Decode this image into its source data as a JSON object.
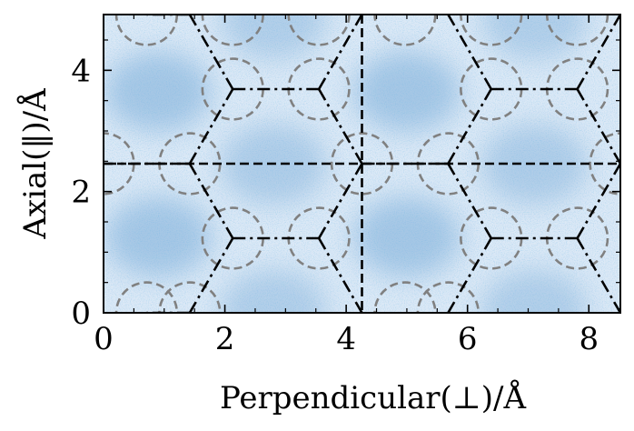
{
  "chart_data": {
    "type": "heatmap",
    "title": "",
    "xlabel": "Perpendicular(⊥)/Å",
    "ylabel": "Axial(‖)/Å",
    "xlim": [
      0,
      8.52
    ],
    "ylim": [
      0,
      4.92
    ],
    "xticks": [
      0,
      2,
      4,
      6,
      8
    ],
    "yticks": [
      0,
      2,
      4
    ],
    "xtick_labels": [
      "0",
      "2",
      "4",
      "6",
      "8"
    ],
    "ytick_labels": [
      "0",
      "2",
      "4"
    ],
    "colormap": "Blues",
    "density_hotspots": [
      {
        "x": 0.9,
        "y": 3.65,
        "level": 0.85
      },
      {
        "x": 0.9,
        "y": 1.25,
        "level": 0.85
      },
      {
        "x": 2.8,
        "y": 2.45,
        "level": 0.7
      },
      {
        "x": 2.8,
        "y": 4.85,
        "level": 0.65
      },
      {
        "x": 2.8,
        "y": 0.05,
        "level": 0.65
      },
      {
        "x": 5.0,
        "y": 3.65,
        "level": 0.85
      },
      {
        "x": 5.0,
        "y": 1.25,
        "level": 0.85
      },
      {
        "x": 7.1,
        "y": 2.45,
        "level": 0.7
      },
      {
        "x": 7.1,
        "y": 4.85,
        "level": 0.65
      },
      {
        "x": 7.1,
        "y": 0.05,
        "level": 0.65
      }
    ],
    "atoms": [
      {
        "x": 0.0,
        "y": 2.46
      },
      {
        "x": 1.42,
        "y": 2.46
      },
      {
        "x": 2.13,
        "y": 3.69
      },
      {
        "x": 3.55,
        "y": 3.69
      },
      {
        "x": 4.26,
        "y": 2.46
      },
      {
        "x": 2.13,
        "y": 1.23
      },
      {
        "x": 3.55,
        "y": 1.23
      },
      {
        "x": 1.42,
        "y": 0.0
      },
      {
        "x": 2.13,
        "y": 4.92
      },
      {
        "x": 3.55,
        "y": 4.92
      },
      {
        "x": 5.68,
        "y": 2.46
      },
      {
        "x": 6.39,
        "y": 3.69
      },
      {
        "x": 7.81,
        "y": 3.69
      },
      {
        "x": 8.52,
        "y": 2.46
      },
      {
        "x": 6.39,
        "y": 1.23
      },
      {
        "x": 7.81,
        "y": 1.23
      },
      {
        "x": 5.68,
        "y": 0.0
      },
      {
        "x": 6.39,
        "y": 4.92
      },
      {
        "x": 7.81,
        "y": 4.92
      },
      {
        "x": 0.71,
        "y": 4.92
      },
      {
        "x": 0.71,
        "y": 0.0
      },
      {
        "x": 4.97,
        "y": 4.92
      },
      {
        "x": 4.97,
        "y": 0.0
      }
    ],
    "bonds": [
      [
        0.0,
        2.46,
        1.42,
        2.46
      ],
      [
        1.42,
        2.46,
        2.13,
        3.69
      ],
      [
        1.42,
        2.46,
        2.13,
        1.23
      ],
      [
        2.13,
        3.69,
        3.55,
        3.69
      ],
      [
        3.55,
        3.69,
        4.26,
        2.46
      ],
      [
        2.13,
        1.23,
        3.55,
        1.23
      ],
      [
        3.55,
        1.23,
        4.26,
        2.46
      ],
      [
        2.13,
        3.69,
        1.42,
        4.92
      ],
      [
        3.55,
        3.69,
        4.26,
        4.92
      ],
      [
        2.13,
        1.23,
        1.42,
        0.0
      ],
      [
        3.55,
        1.23,
        4.26,
        0.0
      ],
      [
        4.26,
        2.46,
        5.68,
        2.46
      ],
      [
        5.68,
        2.46,
        6.39,
        3.69
      ],
      [
        5.68,
        2.46,
        6.39,
        1.23
      ],
      [
        6.39,
        3.69,
        7.81,
        3.69
      ],
      [
        7.81,
        3.69,
        8.52,
        2.46
      ],
      [
        6.39,
        1.23,
        7.81,
        1.23
      ],
      [
        7.81,
        1.23,
        8.52,
        2.46
      ],
      [
        6.39,
        3.69,
        5.68,
        4.92
      ],
      [
        7.81,
        3.69,
        8.52,
        4.92
      ],
      [
        6.39,
        1.23,
        5.68,
        0.0
      ],
      [
        7.81,
        1.23,
        8.52,
        0.0
      ],
      [
        1.42,
        4.92,
        0.71,
        4.92
      ],
      [
        1.42,
        0.0,
        0.71,
        0.0
      ]
    ],
    "atom_radius": 0.5,
    "cell_boundary_x": 4.26,
    "cell_boundary_y": 2.46,
    "grid": false,
    "colors": {
      "bond": "#000000",
      "atom_circle": "#808080",
      "cell_line": "#000000",
      "background": "#dce9f6"
    }
  }
}
